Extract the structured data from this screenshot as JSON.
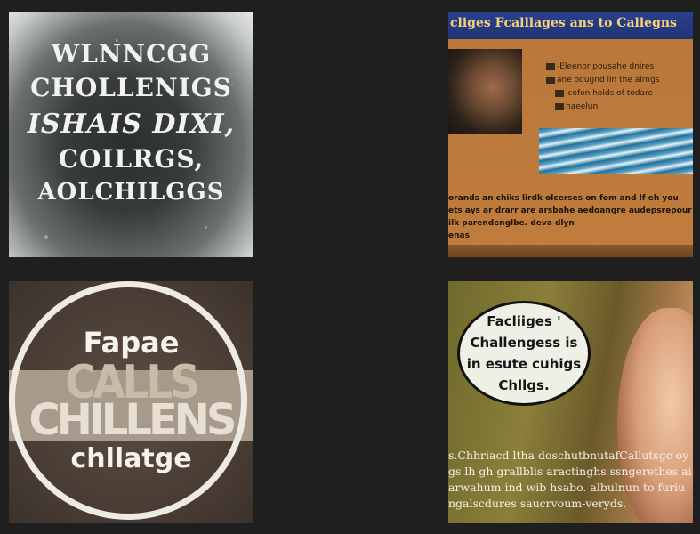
{
  "tiles": {
    "top_left": {
      "lines": [
        "WLNNCGG",
        "CHOLLENIGS",
        "ISHAIS DIXI,",
        "COILRGS,",
        "AOLCHILGGS"
      ]
    },
    "top_right": {
      "banner": "cliges Fcalllages ans to Callegns",
      "bullets": [
        "-Eleenor pousahe dnires",
        "ane odugnd lin the alrngs",
        "icofon holds of todare",
        "haeelun"
      ],
      "paragraph": [
        "orands an chiks lirdk olcerses on fom and lf eh you",
        "ets ays ar drarr are arsbahe aedoangre audepsrepour",
        "ilk parendenglbe. deva dlyn",
        "enas"
      ]
    },
    "bottom_left": {
      "top_word": "Fapae",
      "mid_word_1": "CALLS",
      "mid_word_2": "CHILLENS",
      "bottom_word": "chllatge"
    },
    "bottom_right": {
      "bubble_lines": [
        "Facliiges '",
        "Challengess is",
        "in esute cuhigs",
        "Chllgs."
      ],
      "paragraph": [
        "s.Chhriacd ltha doschutbnutafCallutsgc oy liha",
        "gs lh gh grallblis aractinghs ssngerethes ai",
        "arwahum ind wib hsabo. albulnun to furiu",
        "ngalscdures saucrvoum-veryds."
      ]
    }
  }
}
